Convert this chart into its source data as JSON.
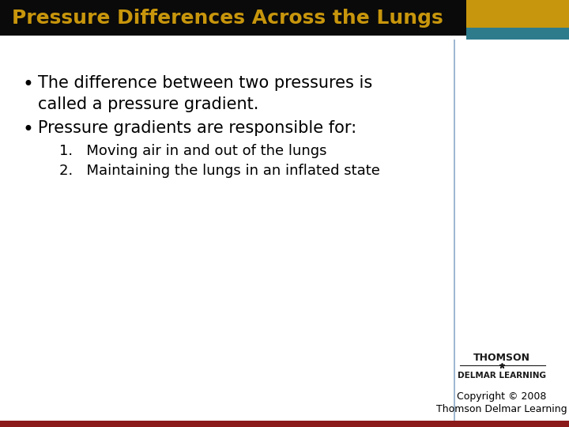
{
  "title": "Pressure Differences Across the Lungs",
  "title_color": "#C8960C",
  "title_bg": "#0A0A0A",
  "title_fontsize": 18,
  "accent_gold": "#C8960C",
  "accent_teal": "#2E7B8C",
  "divider_line_color": "#8BAAC8",
  "bg_color": "#FFFFFF",
  "bullet1_line1": "The difference between two pressures is",
  "bullet1_line2": "called a pressure gradient.",
  "bullet2": "Pressure gradients are responsible for:",
  "item1": "1.   Moving air in and out of the lungs",
  "item2": "2.   Maintaining the lungs in an inflated state",
  "copyright1": "Copyright © 2008",
  "copyright2": "Thomson Delmar Learning",
  "thomson": "THOMSON",
  "delmar": "DELMAR LEARNING",
  "bottom_bar_color": "#8B1A1A",
  "text_color": "#000000",
  "body_fontsize": 15,
  "sub_fontsize": 13
}
